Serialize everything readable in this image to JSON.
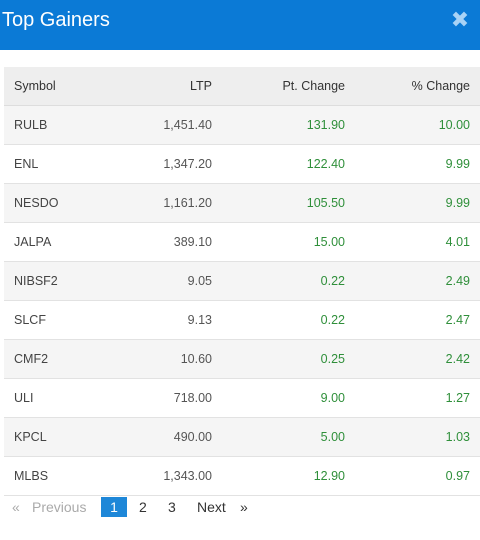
{
  "header": {
    "title": "Top Gainers",
    "close_symbol": "✖"
  },
  "table": {
    "columns": [
      "Symbol",
      "LTP",
      "Pt. Change",
      "% Change"
    ],
    "rows": [
      {
        "symbol": "RULB",
        "ltp": "1,451.40",
        "pt_change": "131.90",
        "pct_change": "10.00"
      },
      {
        "symbol": "ENL",
        "ltp": "1,347.20",
        "pt_change": "122.40",
        "pct_change": "9.99"
      },
      {
        "symbol": "NESDO",
        "ltp": "1,161.20",
        "pt_change": "105.50",
        "pct_change": "9.99"
      },
      {
        "symbol": "JALPA",
        "ltp": "389.10",
        "pt_change": "15.00",
        "pct_change": "4.01"
      },
      {
        "symbol": "NIBSF2",
        "ltp": "9.05",
        "pt_change": "0.22",
        "pct_change": "2.49"
      },
      {
        "symbol": "SLCF",
        "ltp": "9.13",
        "pt_change": "0.22",
        "pct_change": "2.47"
      },
      {
        "symbol": "CMF2",
        "ltp": "10.60",
        "pt_change": "0.25",
        "pct_change": "2.42"
      },
      {
        "symbol": "ULI",
        "ltp": "718.00",
        "pt_change": "9.00",
        "pct_change": "1.27"
      },
      {
        "symbol": "KPCL",
        "ltp": "490.00",
        "pt_change": "5.00",
        "pct_change": "1.03"
      },
      {
        "symbol": "MLBS",
        "ltp": "1,343.00",
        "pt_change": "12.90",
        "pct_change": "0.97"
      }
    ]
  },
  "pagination": {
    "first": "«",
    "previous": "Previous",
    "pages": [
      "1",
      "2",
      "3"
    ],
    "current": "1",
    "next": "Next",
    "last": "»"
  },
  "colors": {
    "header_bg": "#0b7ad6",
    "positive": "#2f8f3a",
    "active_page": "#1e87d8"
  }
}
